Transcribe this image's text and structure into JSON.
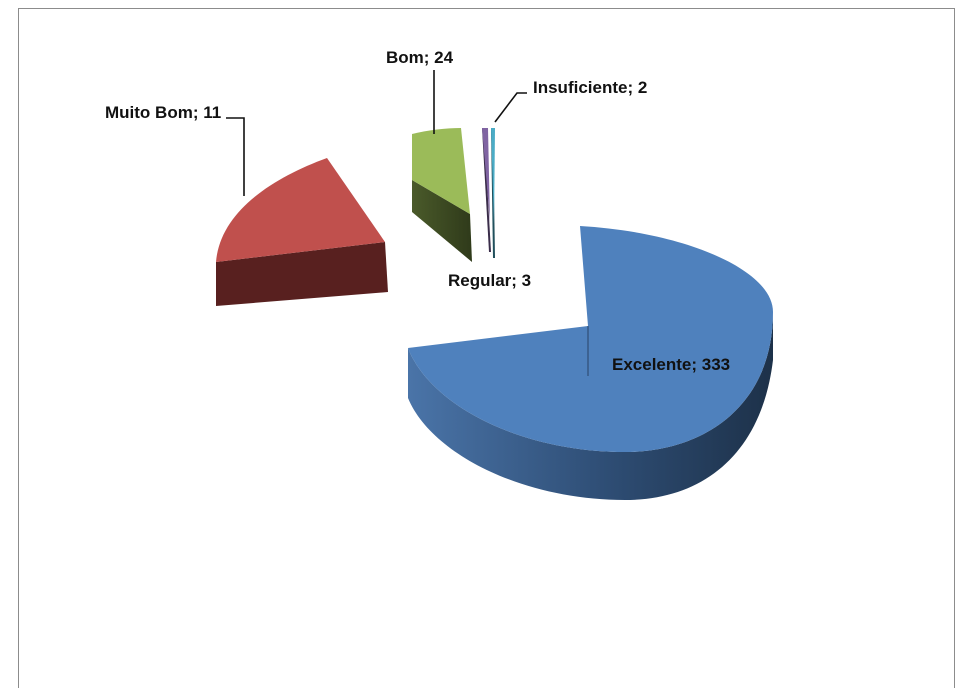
{
  "chart_data": {
    "type": "pie",
    "style": "3d-exploded",
    "title": "",
    "legend": "none",
    "slices": [
      {
        "name": "Excelente",
        "value": 333,
        "label": "Excelente; 333",
        "color": "#4f81bd",
        "side": "#24405f"
      },
      {
        "name": "Muito Bom",
        "value": 11,
        "label": "Muito Bom; 11",
        "color": "#c0504d",
        "side": "#58201f"
      },
      {
        "name": "Bom",
        "value": 24,
        "label": "Bom; 24",
        "color": "#9bbb59",
        "side": "#46542a"
      },
      {
        "name": "Regular",
        "value": 3,
        "label": "Regular; 3",
        "color": "#8064a2",
        "side": "#3a2d4a"
      },
      {
        "name": "Insuficiente",
        "value": 2,
        "label": "Insuficiente; 2",
        "color": "#4bacc6",
        "side": "#21505c"
      }
    ]
  }
}
